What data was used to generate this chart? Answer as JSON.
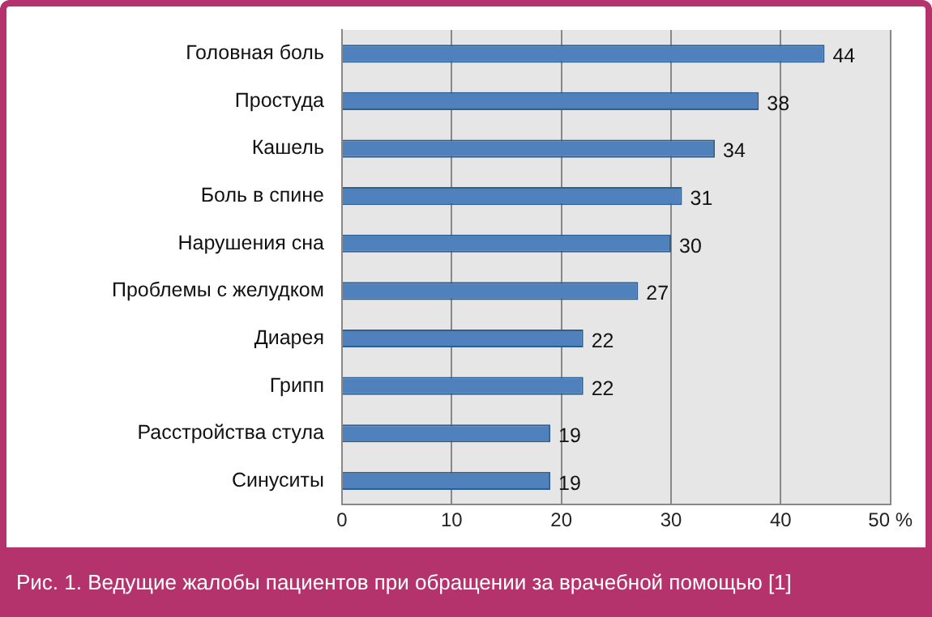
{
  "chart_data": {
    "type": "bar",
    "orientation": "horizontal",
    "title": "Рис. 1. Ведущие жалобы пациентов при обращении за врачебной помощью [1]",
    "categories": [
      "Головная боль",
      "Простуда",
      "Кашель",
      "Боль в спине",
      "Нарушения сна",
      "Проблемы с желудком",
      "Диарея",
      "Грипп",
      "Расстройства стула",
      "Синуситы"
    ],
    "values": [
      44,
      38,
      34,
      31,
      30,
      27,
      22,
      22,
      19,
      19
    ],
    "color": "#4f81bd",
    "xlim": [
      0,
      50
    ],
    "xticks": [
      0,
      10,
      20,
      30,
      40,
      {
        "value": 50,
        "label": "50 %"
      }
    ],
    "grid": "x",
    "legend": false,
    "data_labels": true
  }
}
